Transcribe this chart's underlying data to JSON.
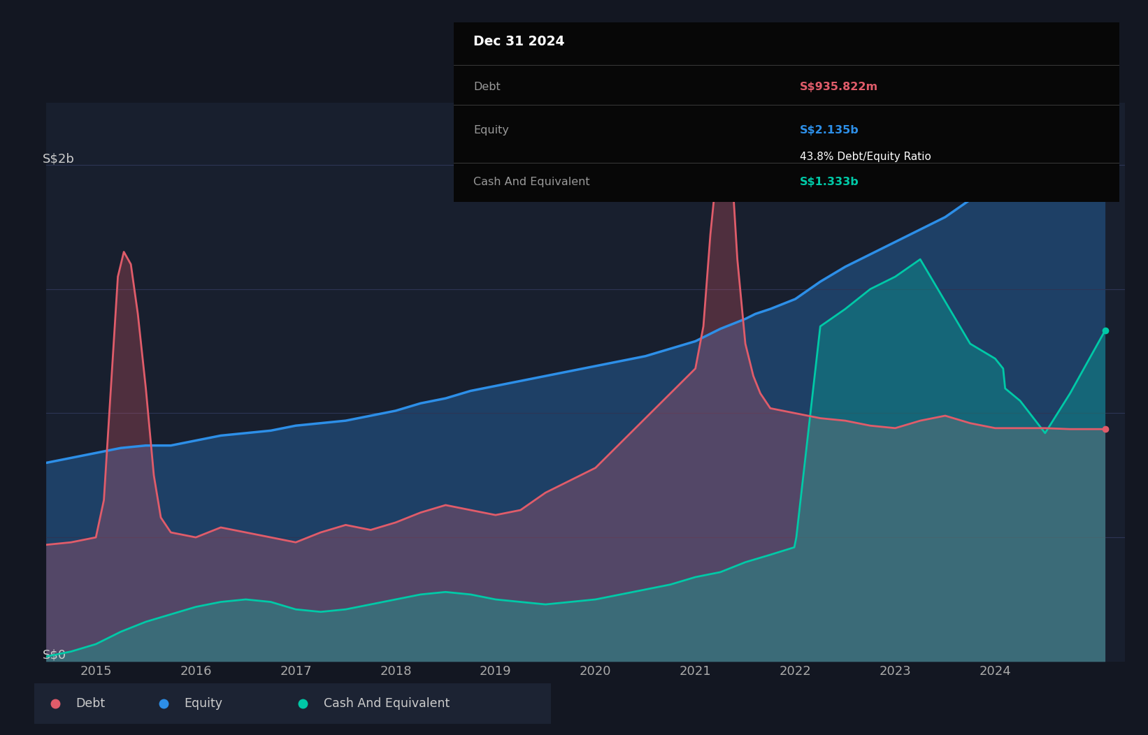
{
  "bg_color": "#131722",
  "plot_bg_color": "#181f2e",
  "grid_color": "#2d3555",
  "debt_color": "#e05c6a",
  "equity_color": "#2d8fe8",
  "cash_color": "#00c9a7",
  "ylabel_text": "S$2b",
  "y0_text": "S$0",
  "tooltip_date": "Dec 31 2024",
  "tooltip_debt_label": "Debt",
  "tooltip_debt_value": "S$935.822m",
  "tooltip_equity_label": "Equity",
  "tooltip_equity_value": "S$2.135b",
  "tooltip_ratio": "43.8% Debt/Equity Ratio",
  "tooltip_cash_label": "Cash And Equivalent",
  "tooltip_cash_value": "S$1.333b",
  "legend_debt": "Debt",
  "legend_equity": "Equity",
  "legend_cash": "Cash And Equivalent",
  "x_ticks": [
    2015,
    2016,
    2017,
    2018,
    2019,
    2020,
    2021,
    2022,
    2023,
    2024
  ],
  "ylim": [
    0,
    2.25
  ],
  "xlim_start": 2014.5,
  "xlim_end": 2025.3,
  "equity_x": [
    2014.5,
    2014.75,
    2015.0,
    2015.25,
    2015.5,
    2015.75,
    2016.0,
    2016.25,
    2016.5,
    2016.75,
    2017.0,
    2017.25,
    2017.5,
    2017.75,
    2018.0,
    2018.25,
    2018.5,
    2018.75,
    2019.0,
    2019.25,
    2019.5,
    2019.75,
    2020.0,
    2020.25,
    2020.5,
    2020.75,
    2021.0,
    2021.25,
    2021.5,
    2021.6,
    2021.75,
    2022.0,
    2022.25,
    2022.5,
    2022.75,
    2023.0,
    2023.25,
    2023.5,
    2023.75,
    2024.0,
    2024.25,
    2024.5,
    2024.75,
    2025.1
  ],
  "equity_y": [
    0.8,
    0.82,
    0.84,
    0.86,
    0.87,
    0.87,
    0.89,
    0.91,
    0.92,
    0.93,
    0.95,
    0.96,
    0.97,
    0.99,
    1.01,
    1.04,
    1.06,
    1.09,
    1.11,
    1.13,
    1.15,
    1.17,
    1.19,
    1.21,
    1.23,
    1.26,
    1.29,
    1.34,
    1.38,
    1.4,
    1.42,
    1.46,
    1.53,
    1.59,
    1.64,
    1.69,
    1.74,
    1.79,
    1.86,
    1.91,
    1.97,
    2.04,
    2.11,
    2.135
  ],
  "debt_x": [
    2014.5,
    2014.75,
    2015.0,
    2015.08,
    2015.15,
    2015.22,
    2015.28,
    2015.35,
    2015.42,
    2015.5,
    2015.58,
    2015.65,
    2015.75,
    2016.0,
    2016.25,
    2016.5,
    2016.75,
    2017.0,
    2017.25,
    2017.5,
    2017.75,
    2018.0,
    2018.25,
    2018.5,
    2018.75,
    2019.0,
    2019.25,
    2019.5,
    2019.75,
    2020.0,
    2020.25,
    2020.5,
    2020.75,
    2021.0,
    2021.08,
    2021.15,
    2021.22,
    2021.28,
    2021.35,
    2021.42,
    2021.5,
    2021.58,
    2021.65,
    2021.75,
    2022.0,
    2022.25,
    2022.5,
    2022.75,
    2023.0,
    2023.25,
    2023.5,
    2023.75,
    2024.0,
    2024.25,
    2024.5,
    2024.75,
    2025.1
  ],
  "debt_y": [
    0.47,
    0.48,
    0.5,
    0.65,
    1.1,
    1.55,
    1.65,
    1.6,
    1.4,
    1.1,
    0.75,
    0.58,
    0.52,
    0.5,
    0.54,
    0.52,
    0.5,
    0.48,
    0.52,
    0.55,
    0.53,
    0.56,
    0.6,
    0.63,
    0.61,
    0.59,
    0.61,
    0.68,
    0.73,
    0.78,
    0.88,
    0.98,
    1.08,
    1.18,
    1.35,
    1.72,
    2.0,
    2.12,
    2.08,
    1.62,
    1.28,
    1.15,
    1.08,
    1.02,
    1.0,
    0.98,
    0.97,
    0.95,
    0.94,
    0.97,
    0.99,
    0.96,
    0.94,
    0.94,
    0.94,
    0.936,
    0.936
  ],
  "cash_x": [
    2014.5,
    2014.75,
    2015.0,
    2015.25,
    2015.5,
    2015.75,
    2016.0,
    2016.25,
    2016.5,
    2016.75,
    2017.0,
    2017.25,
    2017.5,
    2017.75,
    2018.0,
    2018.25,
    2018.5,
    2018.75,
    2019.0,
    2019.25,
    2019.5,
    2019.75,
    2020.0,
    2020.25,
    2020.5,
    2020.75,
    2021.0,
    2021.25,
    2021.5,
    2021.75,
    2021.99,
    2022.01,
    2022.25,
    2022.5,
    2022.75,
    2023.0,
    2023.25,
    2023.5,
    2023.75,
    2024.0,
    2024.08,
    2024.1,
    2024.25,
    2024.5,
    2024.75,
    2025.1
  ],
  "cash_y": [
    0.02,
    0.04,
    0.07,
    0.12,
    0.16,
    0.19,
    0.22,
    0.24,
    0.25,
    0.24,
    0.21,
    0.2,
    0.21,
    0.23,
    0.25,
    0.27,
    0.28,
    0.27,
    0.25,
    0.24,
    0.23,
    0.24,
    0.25,
    0.27,
    0.29,
    0.31,
    0.34,
    0.36,
    0.4,
    0.43,
    0.46,
    0.5,
    1.35,
    1.42,
    1.5,
    1.55,
    1.62,
    1.45,
    1.28,
    1.22,
    1.18,
    1.1,
    1.05,
    0.92,
    1.08,
    1.333
  ]
}
